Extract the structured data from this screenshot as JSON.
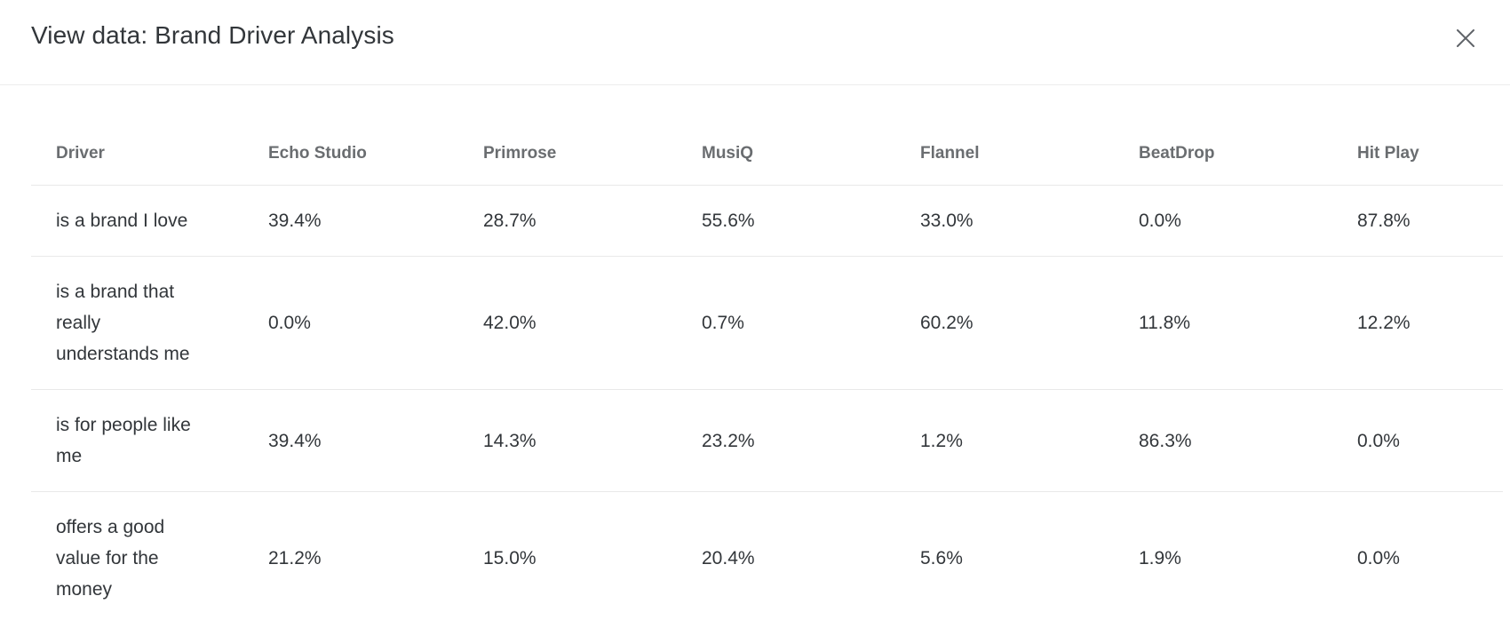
{
  "modal": {
    "title": "View data: Brand Driver Analysis"
  },
  "icons": {
    "close": "close-icon"
  },
  "table": {
    "columns": [
      "Driver",
      "Echo Studio",
      "Primrose",
      "MusiQ",
      "Flannel",
      "BeatDrop",
      "Hit Play"
    ],
    "rows": [
      {
        "driver": "is a brand I love",
        "values": [
          "39.4%",
          "28.7%",
          "55.6%",
          "33.0%",
          "0.0%",
          "87.8%"
        ]
      },
      {
        "driver": "is a brand that really understands me",
        "values": [
          "0.0%",
          "42.0%",
          "0.7%",
          "60.2%",
          "11.8%",
          "12.2%"
        ]
      },
      {
        "driver": "is for people like me",
        "values": [
          "39.4%",
          "14.3%",
          "23.2%",
          "1.2%",
          "86.3%",
          "0.0%"
        ]
      },
      {
        "driver": "offers a good value for the money",
        "values": [
          "21.2%",
          "15.0%",
          "20.4%",
          "5.6%",
          "1.9%",
          "0.0%"
        ]
      }
    ]
  },
  "colors": {
    "title_text": "#32363a",
    "header_text": "#6a6d70",
    "cell_text": "#32363a",
    "row_border": "#e9e9e9",
    "header_divider": "#ededed",
    "close_icon": "#5f6368",
    "background": "#ffffff"
  }
}
